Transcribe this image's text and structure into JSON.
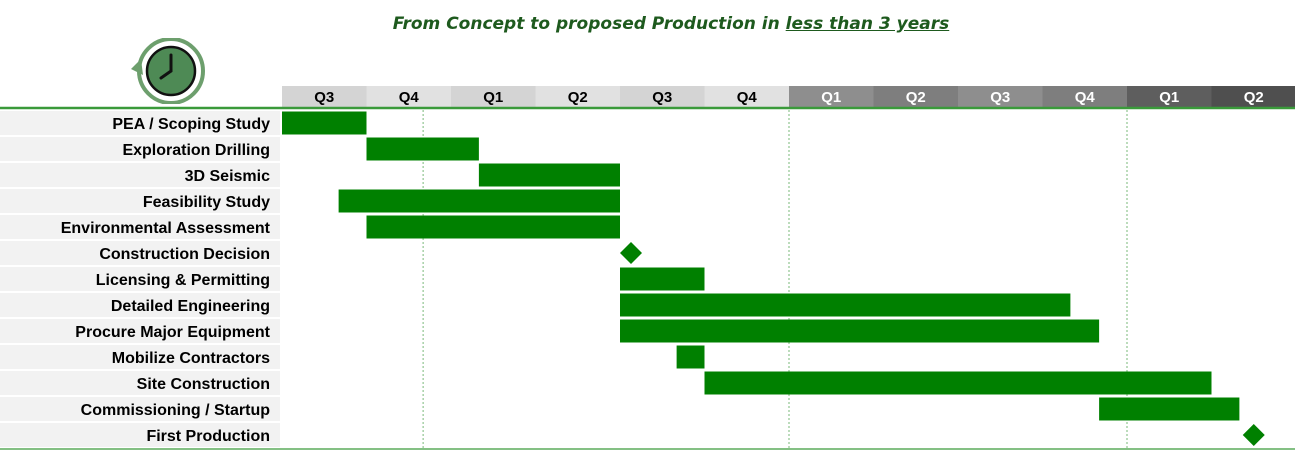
{
  "title": {
    "prefix": "From Concept to proposed Production in ",
    "emphasis": "less than 3 years"
  },
  "colors": {
    "bar": "#008000",
    "accent_line": "#3a9a3a",
    "row_band": "#f2f2f2",
    "header_year1": [
      "#d4d4d4",
      "#e1e1e1"
    ],
    "header_year2": [
      "#8e8e8e",
      "#7e7e7e"
    ],
    "header_year3": [
      "#5e5e5e",
      "#4f4f4f"
    ]
  },
  "clock_icon": "clock-icon",
  "chart_data": {
    "type": "gantt",
    "quarters": [
      "Q3",
      "Q4",
      "Q1",
      "Q2",
      "Q3",
      "Q4",
      "Q1",
      "Q2",
      "Q3",
      "Q4",
      "Q1",
      "Q2"
    ],
    "year_groups": [
      [
        0,
        5
      ],
      [
        6,
        9
      ],
      [
        10,
        11
      ]
    ],
    "tasks": [
      {
        "name": "PEA / Scoping Study",
        "start": 0.0,
        "end": 1.0
      },
      {
        "name": "Exploration Drilling",
        "start": 1.0,
        "end": 2.33
      },
      {
        "name": "3D Seismic",
        "start": 2.33,
        "end": 4.0
      },
      {
        "name": "Feasibility Study",
        "start": 0.67,
        "end": 4.0
      },
      {
        "name": "Environmental Assessment",
        "start": 1.0,
        "end": 4.0
      },
      {
        "name": "Construction Decision",
        "milestone": 4.13
      },
      {
        "name": "Licensing & Permitting",
        "start": 4.0,
        "end": 5.0
      },
      {
        "name": "Detailed Engineering",
        "start": 4.0,
        "end": 9.33
      },
      {
        "name": "Procure Major Equipment",
        "start": 4.0,
        "end": 9.67
      },
      {
        "name": "Mobilize Contractors",
        "start": 4.67,
        "end": 5.0
      },
      {
        "name": "Site Construction",
        "start": 5.0,
        "end": 11.0
      },
      {
        "name": "Commissioning / Startup",
        "start": 9.67,
        "end": 11.33
      },
      {
        "name": "First Production",
        "milestone": 11.5
      }
    ],
    "dashed_dividers": [
      1.67,
      6.0,
      10.0
    ]
  }
}
